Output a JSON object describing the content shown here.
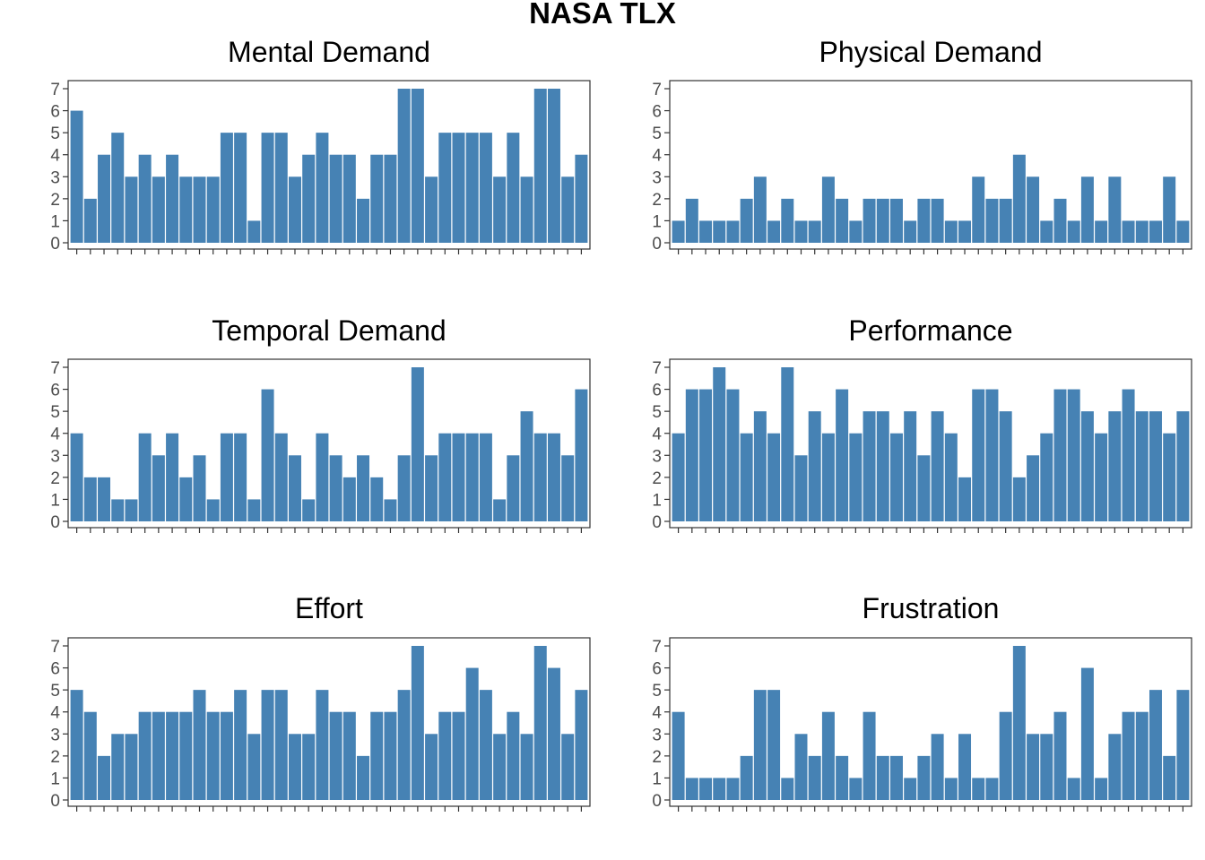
{
  "title": "NASA TLX",
  "colors": {
    "bar": "#4682b4",
    "axis": "#333333",
    "tick_text": "#4d4d4d",
    "background": "#ffffff"
  },
  "chart_data": [
    {
      "type": "bar",
      "title": "Mental Demand",
      "ylim": [
        0,
        7
      ],
      "yticks": [
        0,
        1,
        2,
        3,
        4,
        5,
        6,
        7
      ],
      "grid": false,
      "values": [
        6,
        2,
        4,
        5,
        3,
        4,
        3,
        4,
        3,
        3,
        3,
        5,
        5,
        1,
        5,
        5,
        3,
        4,
        5,
        4,
        4,
        2,
        4,
        4,
        7,
        7,
        3,
        5,
        5,
        5,
        5,
        3,
        5,
        3,
        7,
        7,
        3,
        4
      ]
    },
    {
      "type": "bar",
      "title": "Physical Demand",
      "ylim": [
        0,
        7
      ],
      "yticks": [
        0,
        1,
        2,
        3,
        4,
        5,
        6,
        7
      ],
      "grid": false,
      "values": [
        1,
        2,
        1,
        1,
        1,
        2,
        3,
        1,
        2,
        1,
        1,
        3,
        2,
        1,
        2,
        2,
        2,
        1,
        2,
        2,
        1,
        1,
        3,
        2,
        2,
        4,
        3,
        1,
        2,
        1,
        3,
        1,
        3,
        1,
        1,
        1,
        3,
        1
      ]
    },
    {
      "type": "bar",
      "title": "Temporal Demand",
      "ylim": [
        0,
        7
      ],
      "yticks": [
        0,
        1,
        2,
        3,
        4,
        5,
        6,
        7
      ],
      "grid": false,
      "values": [
        4,
        2,
        2,
        1,
        1,
        4,
        3,
        4,
        2,
        3,
        1,
        4,
        4,
        1,
        6,
        4,
        3,
        1,
        4,
        3,
        2,
        3,
        2,
        1,
        3,
        7,
        3,
        4,
        4,
        4,
        4,
        1,
        3,
        5,
        4,
        4,
        3,
        6
      ]
    },
    {
      "type": "bar",
      "title": "Performance",
      "ylim": [
        0,
        7
      ],
      "yticks": [
        0,
        1,
        2,
        3,
        4,
        5,
        6,
        7
      ],
      "grid": false,
      "values": [
        4,
        6,
        6,
        7,
        6,
        4,
        5,
        4,
        7,
        3,
        5,
        4,
        6,
        4,
        5,
        5,
        4,
        5,
        3,
        5,
        4,
        2,
        6,
        6,
        5,
        2,
        3,
        4,
        6,
        6,
        5,
        4,
        5,
        6,
        5,
        5,
        4,
        5
      ]
    },
    {
      "type": "bar",
      "title": "Effort",
      "ylim": [
        0,
        7
      ],
      "yticks": [
        0,
        1,
        2,
        3,
        4,
        5,
        6,
        7
      ],
      "grid": false,
      "values": [
        5,
        4,
        2,
        3,
        3,
        4,
        4,
        4,
        4,
        5,
        4,
        4,
        5,
        3,
        5,
        5,
        3,
        3,
        5,
        4,
        4,
        2,
        4,
        4,
        5,
        7,
        3,
        4,
        4,
        6,
        5,
        3,
        4,
        3,
        7,
        6,
        3,
        5
      ]
    },
    {
      "type": "bar",
      "title": "Frustration",
      "ylim": [
        0,
        7
      ],
      "yticks": [
        0,
        1,
        2,
        3,
        4,
        5,
        6,
        7
      ],
      "grid": false,
      "values": [
        4,
        1,
        1,
        1,
        1,
        2,
        5,
        5,
        1,
        3,
        2,
        4,
        2,
        1,
        4,
        2,
        2,
        1,
        2,
        3,
        1,
        3,
        1,
        1,
        4,
        7,
        3,
        3,
        4,
        1,
        6,
        1,
        3,
        4,
        4,
        5,
        2,
        5
      ]
    }
  ]
}
